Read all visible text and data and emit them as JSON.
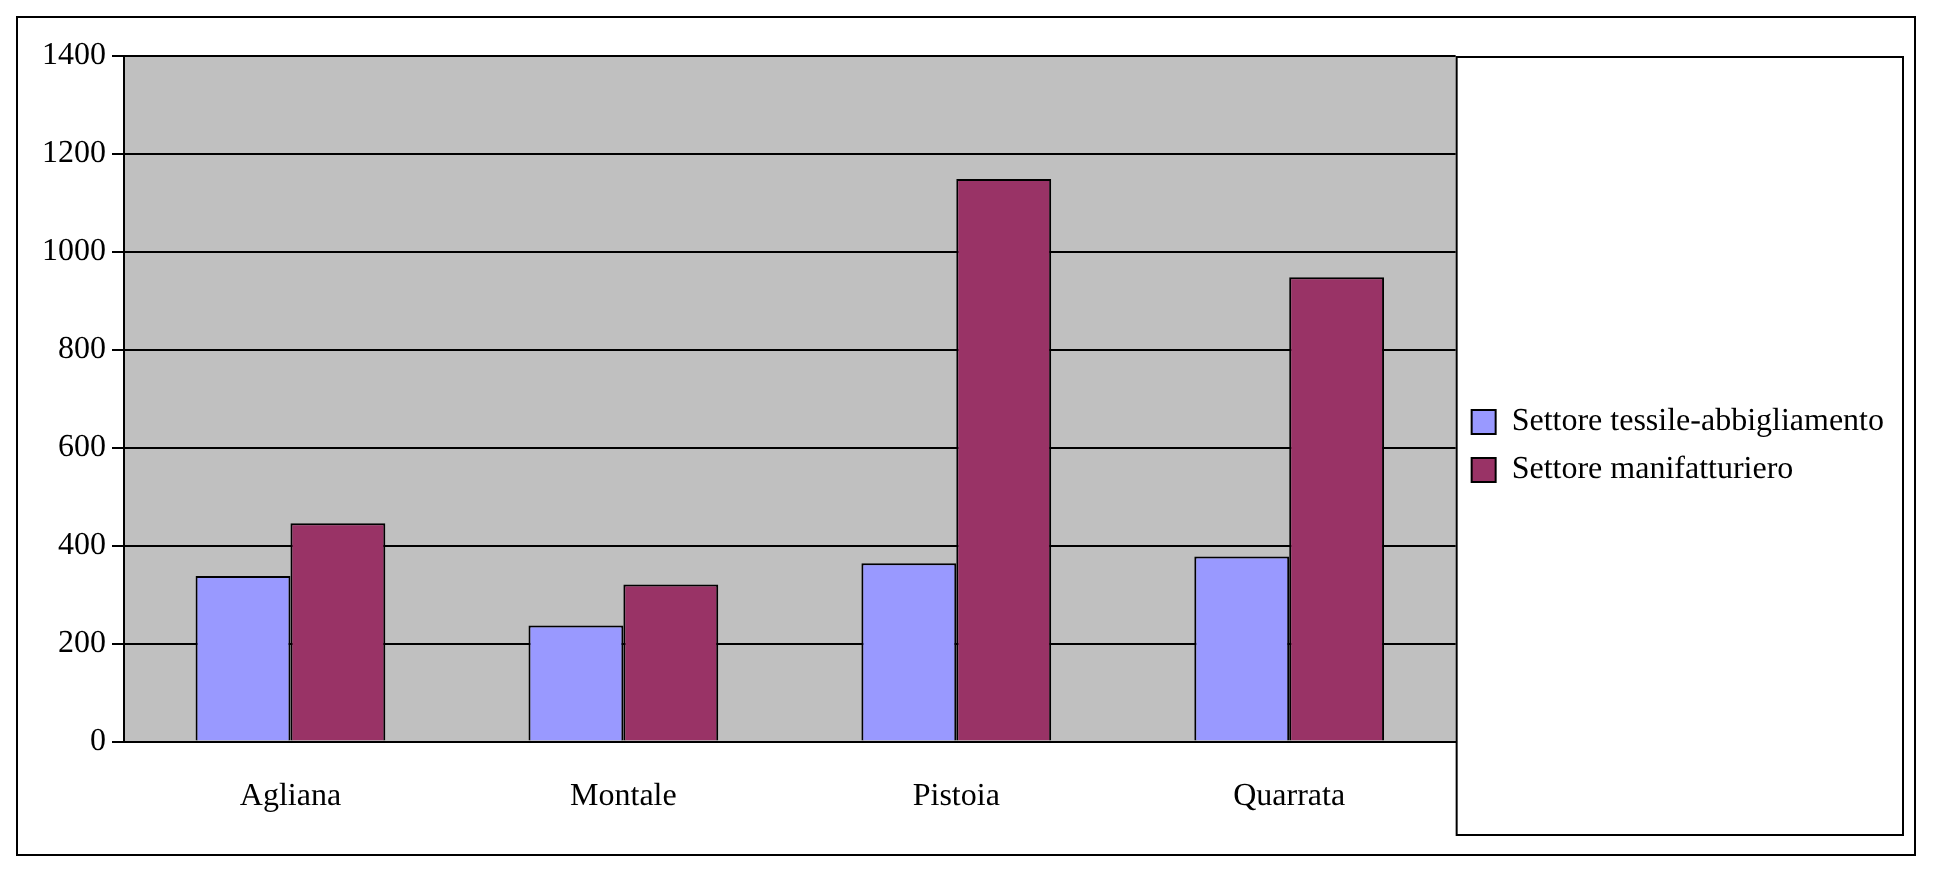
{
  "chart_data": {
    "type": "bar",
    "categories": [
      "Agliana",
      "Montale",
      "Pistoia",
      "Quarrata"
    ],
    "series": [
      {
        "name": "Settore tessile-abbigliamento",
        "color": "#9999ff",
        "values": [
          338,
          237,
          364,
          378
        ]
      },
      {
        "name": "Settore manifatturiero",
        "color": "#993366",
        "values": [
          446,
          321,
          1149,
          948
        ]
      }
    ],
    "ylim": [
      0,
      1400
    ],
    "yticks": [
      0,
      200,
      400,
      600,
      800,
      1000,
      1200,
      1400
    ],
    "grid": "y",
    "legend": "right"
  }
}
